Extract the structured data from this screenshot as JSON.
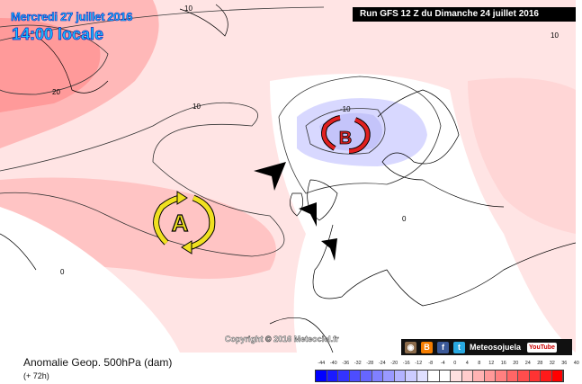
{
  "header": {
    "date": "Mercredi 27 juillet 2016",
    "time": "14:00 locale",
    "run": "Run GFS 12 Z du Dimanche 24 juillet 2016"
  },
  "map": {
    "high_label": "A",
    "low_label": "B",
    "contour_labels": [
      "10",
      "20",
      "10",
      "0",
      "-10",
      "10",
      "0"
    ],
    "high_color": "#f0e020",
    "low_color": "#e02020"
  },
  "copyright": "Copyright © 2016 Meteociel.fr",
  "social": {
    "icons": [
      "instagram-icon",
      "blogger-icon",
      "facebook-icon",
      "twitter-icon"
    ],
    "name": "Meteosojuela",
    "youtube": "YouTube"
  },
  "footer": {
    "title": "Anomalie Geop. 500hPa (dam)",
    "subtitle": "(+ 72h)"
  },
  "colorbar": {
    "labels": [
      "-44",
      "-40",
      "-36",
      "-32",
      "-28",
      "-24",
      "-20",
      "-16",
      "-12",
      "-8",
      "-4",
      "0",
      "4",
      "8",
      "12",
      "16",
      "20",
      "24",
      "28",
      "32",
      "36",
      "40"
    ],
    "colors": [
      "#0000ff",
      "#1a1aff",
      "#3333ff",
      "#4d4dff",
      "#6666ff",
      "#8080ff",
      "#9999ff",
      "#b3b3ff",
      "#ccccff",
      "#e0e0ff",
      "#ffffff",
      "#ffffff",
      "#ffe0e0",
      "#ffcccc",
      "#ffb3b3",
      "#ff9999",
      "#ff8080",
      "#ff6666",
      "#ff4d4d",
      "#ff3333",
      "#ff1a1a",
      "#ff0000"
    ]
  }
}
